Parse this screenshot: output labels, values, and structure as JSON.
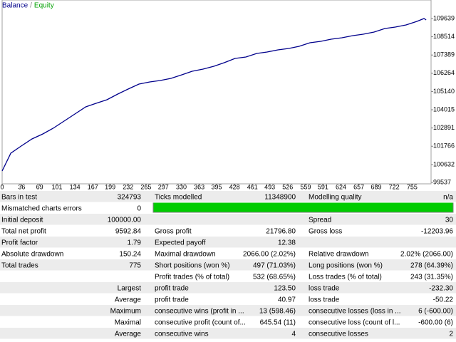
{
  "chart_data": {
    "type": "line",
    "legend": [
      {
        "name": "Balance",
        "color": "#00008b"
      },
      {
        "name": "Equity",
        "color": "#00a000"
      }
    ],
    "legend_separator": "/",
    "series": [
      {
        "color": "#00008b",
        "x": [
          0,
          16,
          35,
          55,
          75,
          94,
          114,
          134,
          154,
          173,
          193,
          213,
          232,
          252,
          272,
          291,
          311,
          331,
          350,
          370,
          390,
          409,
          429,
          449,
          469,
          488,
          508,
          528,
          547,
          567,
          587,
          606,
          626,
          646,
          665,
          685,
          705,
          724,
          744,
          764,
          777,
          781
        ],
        "values": [
          100240,
          101338,
          101777,
          102217,
          102524,
          102875,
          103315,
          103754,
          104193,
          104413,
          104632,
          104983,
          105291,
          105598,
          105730,
          105818,
          105950,
          106169,
          106389,
          106521,
          106696,
          106916,
          107179,
          107267,
          107487,
          107575,
          107707,
          107794,
          107926,
          108146,
          108234,
          108365,
          108453,
          108585,
          108673,
          108805,
          109024,
          109112,
          109244,
          109463,
          109639,
          109551
        ]
      }
    ],
    "xlim": [
      0,
      790
    ],
    "xticks": [
      0,
      36,
      69,
      101,
      134,
      167,
      199,
      232,
      265,
      297,
      330,
      363,
      395,
      428,
      461,
      493,
      526,
      559,
      591,
      624,
      657,
      689,
      722,
      755
    ],
    "ylim": [
      99449,
      110781
    ],
    "yticks": [
      99537,
      100632,
      101766,
      102891,
      104015,
      105140,
      106264,
      107389,
      108514,
      109639
    ]
  },
  "report": {
    "rows": [
      [
        "Bars in test",
        "324793",
        "Ticks modelled",
        "11348900",
        "Modelling quality",
        "n/a"
      ],
      [
        "Mismatched charts errors",
        "0",
        null,
        null,
        null,
        null
      ],
      [
        "Initial deposit",
        "100000.00",
        null,
        null,
        "Spread",
        "30"
      ],
      [
        "Total net profit",
        "9592.84",
        "Gross profit",
        "21796.80",
        "Gross loss",
        "-12203.96"
      ],
      [
        "Profit factor",
        "1.79",
        "Expected payoff",
        "12.38",
        null,
        null
      ],
      [
        "Absolute drawdown",
        "150.24",
        "Maximal drawdown",
        "2066.00 (2.02%)",
        "Relative drawdown",
        "2.02% (2066.00)"
      ],
      [
        "Total trades",
        "775",
        "Short positions (won %)",
        "497 (71.03%)",
        "Long positions (won %)",
        "278 (64.39%)"
      ],
      [
        null,
        null,
        "Profit trades (% of total)",
        "532 (68.65%)",
        "Loss trades (% of total)",
        "243 (31.35%)"
      ],
      [
        "Largest",
        null,
        "profit trade",
        "123.50",
        "loss trade",
        "-232.30"
      ],
      [
        "Average",
        null,
        "profit trade",
        "40.97",
        "loss trade",
        "-50.22"
      ],
      [
        "Maximum",
        null,
        "consecutive wins (profit in ...",
        "13 (598.46)",
        "consecutive losses (loss in ...",
        "6 (-600.00)"
      ],
      [
        "Maximal",
        null,
        "consecutive profit (count of...",
        "645.54 (11)",
        "consecutive loss (count of l...",
        "-600.00 (6)"
      ],
      [
        "Average",
        null,
        "consecutive wins",
        "4",
        "consecutive losses",
        "2"
      ]
    ]
  }
}
